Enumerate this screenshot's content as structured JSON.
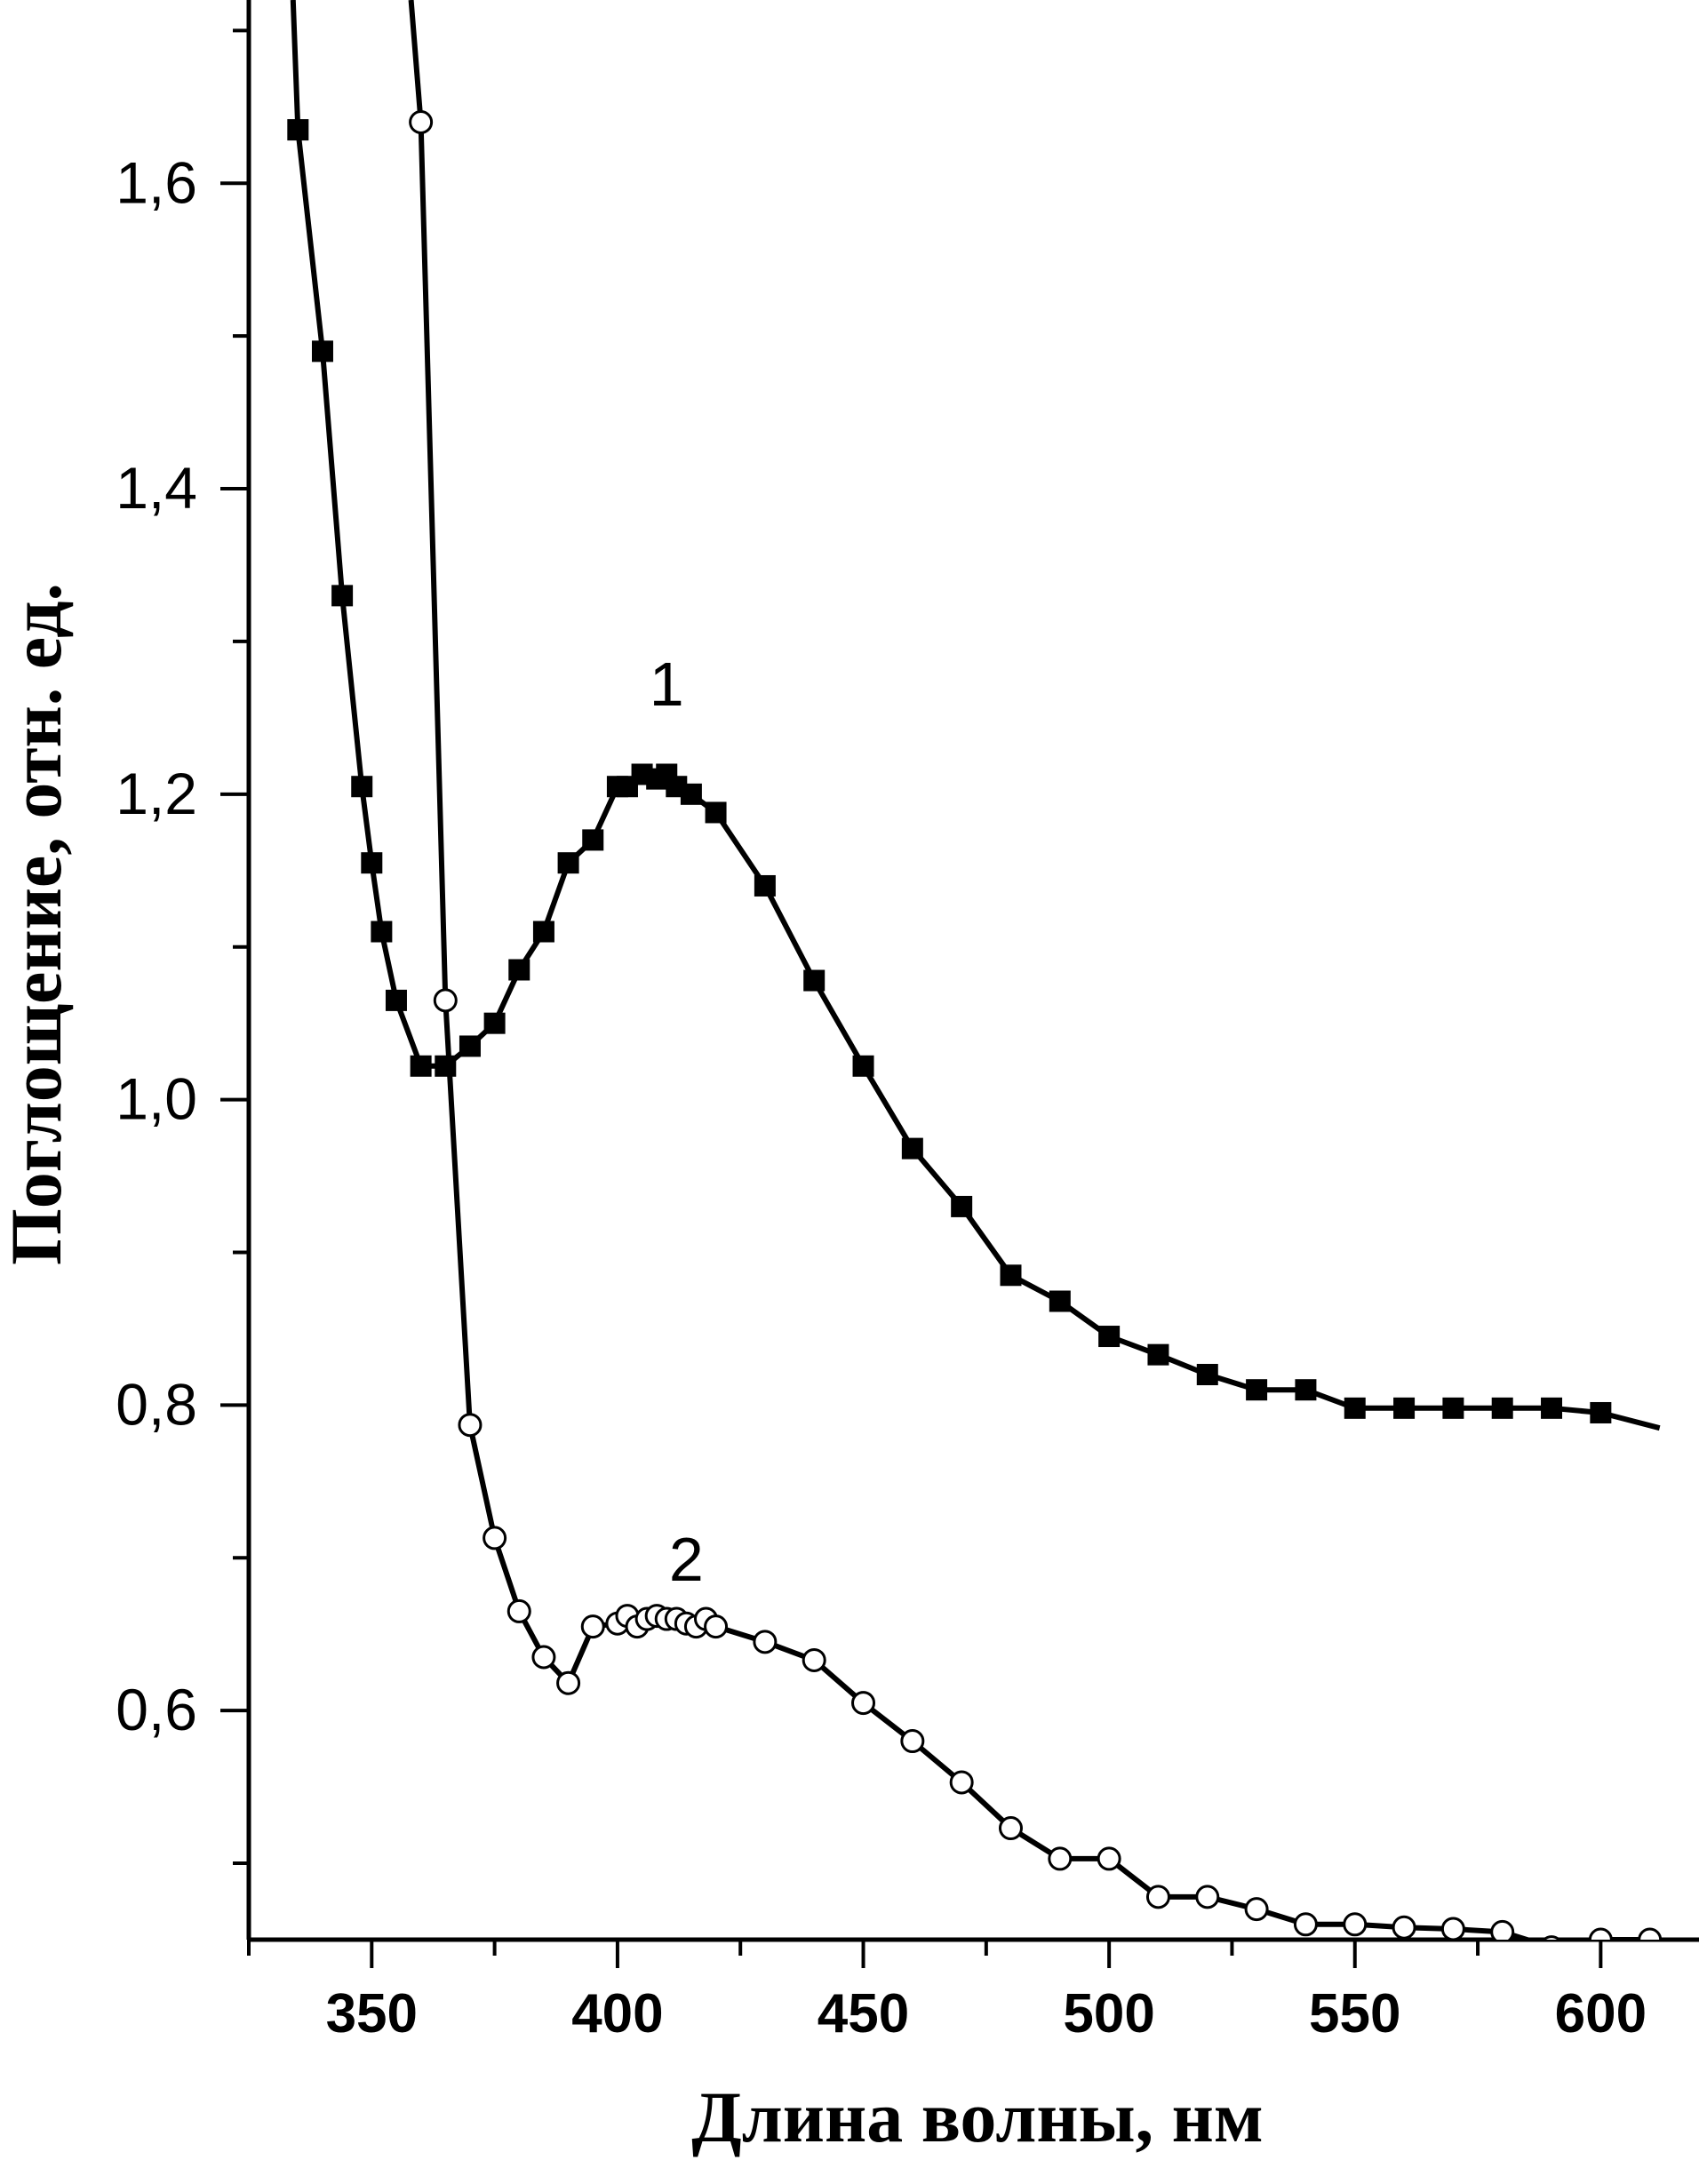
{
  "chart_data": {
    "type": "line",
    "title": "",
    "xlabel": "Длина волны, нм",
    "ylabel": "Поглощение, отн. ед.",
    "xlim": [
      325,
      620
    ],
    "ylim": [
      0.45,
      1.72
    ],
    "x_ticks": [
      350,
      400,
      450,
      500,
      550,
      600
    ],
    "x_tick_labels": [
      "350",
      "400",
      "450",
      "500",
      "550",
      "600"
    ],
    "y_ticks": [
      0.6,
      0.8,
      1.0,
      1.2,
      1.4,
      1.6
    ],
    "y_tick_labels": [
      "0,6",
      "0,8",
      "1,0",
      "1,2",
      "1,4",
      "1,6"
    ],
    "grid": false,
    "series": [
      {
        "name": "1",
        "marker": "filled-square",
        "label_at": [
          410,
          1.258
        ],
        "curve_x": [
          334,
          335,
          340,
          344,
          348,
          350,
          352,
          355,
          360,
          365,
          370,
          375,
          380,
          385,
          390,
          395,
          400,
          402,
          405,
          408,
          410,
          412,
          415,
          420,
          430,
          440,
          450,
          460,
          470,
          480,
          490,
          500,
          510,
          520,
          530,
          540,
          550,
          560,
          570,
          580,
          590,
          600,
          612
        ],
        "curve_y": [
          1.72,
          1.635,
          1.49,
          1.33,
          1.205,
          1.155,
          1.11,
          1.065,
          1.022,
          1.022,
          1.035,
          1.05,
          1.085,
          1.11,
          1.155,
          1.17,
          1.205,
          1.205,
          1.213,
          1.21,
          1.213,
          1.205,
          1.2,
          1.188,
          1.14,
          1.078,
          1.022,
          0.968,
          0.93,
          0.885,
          0.868,
          0.845,
          0.833,
          0.82,
          0.81,
          0.81,
          0.798,
          0.798,
          0.798,
          0.798,
          0.798,
          0.795,
          0.785
        ],
        "x": [
          335,
          340,
          344,
          348,
          350,
          352,
          355,
          360,
          365,
          370,
          375,
          380,
          385,
          390,
          395,
          400,
          402,
          405,
          408,
          410,
          412,
          415,
          420,
          430,
          440,
          450,
          460,
          470,
          480,
          490,
          500,
          510,
          520,
          530,
          540,
          550,
          560,
          570,
          580,
          590,
          600
        ],
        "values": [
          1.635,
          1.49,
          1.33,
          1.205,
          1.155,
          1.11,
          1.065,
          1.022,
          1.022,
          1.035,
          1.05,
          1.085,
          1.11,
          1.155,
          1.17,
          1.205,
          1.205,
          1.213,
          1.21,
          1.213,
          1.205,
          1.2,
          1.188,
          1.14,
          1.078,
          1.022,
          0.968,
          0.93,
          0.885,
          0.868,
          0.845,
          0.833,
          0.82,
          0.81,
          0.81,
          0.798,
          0.798,
          0.798,
          0.798,
          0.798,
          0.795
        ]
      },
      {
        "name": "2",
        "marker": "open-circle",
        "label_at": [
          414,
          0.685
        ],
        "curve_x": [
          358,
          360,
          365,
          370,
          375,
          380,
          385,
          390,
          395,
          400,
          402,
          404,
          406,
          408,
          410,
          412,
          414,
          416,
          418,
          420,
          430,
          440,
          450,
          460,
          470,
          480,
          490,
          500,
          510,
          520,
          530,
          540,
          550,
          560,
          570,
          580,
          590,
          600,
          610,
          620
        ],
        "curve_y": [
          1.72,
          1.64,
          1.065,
          0.787,
          0.713,
          0.665,
          0.635,
          0.618,
          0.655,
          0.657,
          0.662,
          0.655,
          0.66,
          0.662,
          0.66,
          0.66,
          0.657,
          0.655,
          0.66,
          0.655,
          0.645,
          0.633,
          0.605,
          0.58,
          0.553,
          0.523,
          0.503,
          0.503,
          0.478,
          0.478,
          0.47,
          0.46,
          0.46,
          0.458,
          0.457,
          0.455,
          0.445,
          0.45,
          0.45,
          0.448
        ],
        "x": [
          360,
          365,
          370,
          375,
          380,
          385,
          390,
          395,
          400,
          402,
          404,
          406,
          408,
          410,
          412,
          414,
          416,
          418,
          420,
          430,
          440,
          450,
          460,
          470,
          480,
          490,
          500,
          510,
          520,
          530,
          540,
          550,
          560,
          570,
          580,
          590,
          600,
          610
        ],
        "values": [
          1.64,
          1.065,
          0.787,
          0.713,
          0.665,
          0.635,
          0.618,
          0.655,
          0.657,
          0.662,
          0.655,
          0.66,
          0.662,
          0.66,
          0.66,
          0.657,
          0.655,
          0.66,
          0.655,
          0.645,
          0.633,
          0.605,
          0.58,
          0.553,
          0.523,
          0.503,
          0.503,
          0.478,
          0.478,
          0.47,
          0.46,
          0.46,
          0.458,
          0.457,
          0.455,
          0.445,
          0.45,
          0.45
        ]
      }
    ]
  }
}
